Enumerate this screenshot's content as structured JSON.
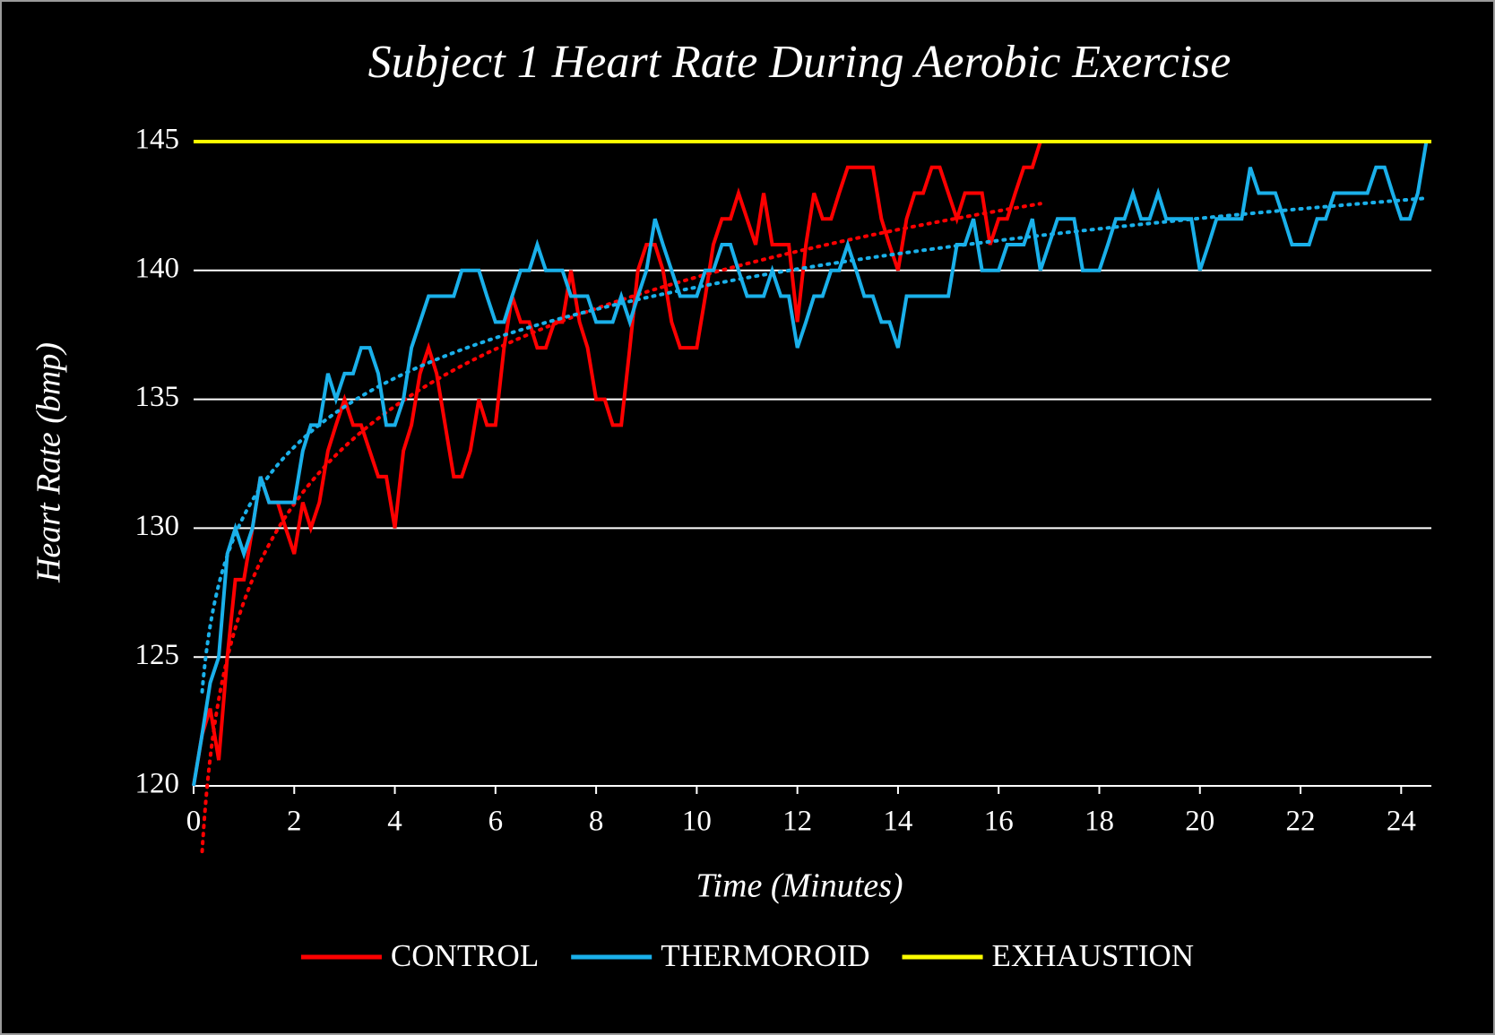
{
  "chart_data": {
    "type": "line",
    "title": "Subject 1 Heart Rate During Aerobic Exercise",
    "xlabel": "Time (Minutes)",
    "ylabel": "Heart Rate (bmp)",
    "xlim": [
      0,
      24.6
    ],
    "ylim": [
      120,
      145
    ],
    "xticks": [
      0,
      2,
      4,
      6,
      8,
      10,
      12,
      14,
      16,
      18,
      20,
      22,
      24
    ],
    "yticks": [
      120,
      125,
      130,
      135,
      140,
      145
    ],
    "grid": true,
    "legend": "bottom",
    "series": [
      {
        "name": "CONTROL",
        "color": "#ff0000",
        "trendline": "logarithmic",
        "x": [
          0,
          0.17,
          0.33,
          0.5,
          0.67,
          0.83,
          1,
          1.17,
          1.33,
          1.5,
          1.67,
          1.83,
          2,
          2.17,
          2.33,
          2.5,
          2.67,
          2.83,
          3,
          3.17,
          3.33,
          3.5,
          3.67,
          3.83,
          4,
          4.17,
          4.33,
          4.5,
          4.67,
          4.83,
          5,
          5.17,
          5.33,
          5.5,
          5.67,
          5.83,
          6,
          6.17,
          6.33,
          6.5,
          6.67,
          6.83,
          7,
          7.17,
          7.33,
          7.5,
          7.67,
          7.83,
          8,
          8.17,
          8.33,
          8.5,
          8.67,
          8.83,
          9,
          9.17,
          9.33,
          9.5,
          9.67,
          9.83,
          10,
          10.17,
          10.33,
          10.5,
          10.67,
          10.83,
          11,
          11.17,
          11.33,
          11.5,
          11.67,
          11.83,
          12,
          12.17,
          12.33,
          12.5,
          12.67,
          12.83,
          13,
          13.17,
          13.33,
          13.5,
          13.67,
          13.83,
          14,
          14.17,
          14.33,
          14.5,
          14.67,
          14.83,
          15,
          15.17,
          15.33,
          15.5,
          15.67,
          15.83,
          16,
          16.17,
          16.33,
          16.5,
          16.67,
          16.83
        ],
        "values": [
          120,
          122,
          123,
          121,
          125,
          128,
          128,
          130,
          132,
          131,
          131,
          130,
          129,
          131,
          130,
          131,
          133,
          134,
          135,
          134,
          134,
          133,
          132,
          132,
          130,
          133,
          134,
          136,
          137,
          136,
          134,
          132,
          132,
          133,
          135,
          134,
          134,
          137,
          139,
          138,
          138,
          137,
          137,
          138,
          138,
          140,
          138,
          137,
          135,
          135,
          134,
          134,
          137,
          140,
          141,
          141,
          140,
          138,
          137,
          137,
          137,
          139,
          141,
          142,
          142,
          143,
          142,
          141,
          143,
          141,
          141,
          141,
          138,
          141,
          143,
          142,
          142,
          143,
          144,
          144,
          144,
          144,
          142,
          141,
          140,
          142,
          143,
          143,
          144,
          144,
          143,
          142,
          143,
          143,
          143,
          141,
          142,
          142,
          143,
          144,
          144,
          145
        ]
      },
      {
        "name": "THERMOROID",
        "color": "#1ab0ea",
        "trendline": "logarithmic",
        "x": [
          0,
          0.17,
          0.33,
          0.5,
          0.67,
          0.83,
          1,
          1.17,
          1.33,
          1.5,
          1.67,
          1.83,
          2,
          2.17,
          2.33,
          2.5,
          2.67,
          2.83,
          3,
          3.17,
          3.33,
          3.5,
          3.67,
          3.83,
          4,
          4.17,
          4.33,
          4.5,
          4.67,
          4.83,
          5,
          5.17,
          5.33,
          5.5,
          5.67,
          5.83,
          6,
          6.17,
          6.33,
          6.5,
          6.67,
          6.83,
          7,
          7.17,
          7.33,
          7.5,
          7.67,
          7.83,
          8,
          8.17,
          8.33,
          8.5,
          8.67,
          8.83,
          9,
          9.17,
          9.33,
          9.5,
          9.67,
          9.83,
          10,
          10.17,
          10.33,
          10.5,
          10.67,
          10.83,
          11,
          11.17,
          11.33,
          11.5,
          11.67,
          11.83,
          12,
          12.17,
          12.33,
          12.5,
          12.67,
          12.83,
          13,
          13.17,
          13.33,
          13.5,
          13.67,
          13.83,
          14,
          14.17,
          14.33,
          14.5,
          14.67,
          14.83,
          15,
          15.17,
          15.33,
          15.5,
          15.67,
          15.83,
          16,
          16.17,
          16.33,
          16.5,
          16.67,
          16.83,
          17,
          17.17,
          17.33,
          17.5,
          17.67,
          17.83,
          18,
          18.17,
          18.33,
          18.5,
          18.67,
          18.83,
          19,
          19.17,
          19.33,
          19.5,
          19.67,
          19.83,
          20,
          20.17,
          20.33,
          20.5,
          20.67,
          20.83,
          21,
          21.17,
          21.33,
          21.5,
          21.67,
          21.83,
          22,
          22.17,
          22.33,
          22.5,
          22.67,
          22.83,
          23,
          23.17,
          23.33,
          23.5,
          23.67,
          23.83,
          24,
          24.17,
          24.33,
          24.5
        ],
        "values": [
          120,
          122,
          124,
          125,
          129,
          130,
          129,
          130,
          132,
          131,
          131,
          131,
          131,
          133,
          134,
          134,
          136,
          135,
          136,
          136,
          137,
          137,
          136,
          134,
          134,
          135,
          137,
          138,
          139,
          139,
          139,
          139,
          140,
          140,
          140,
          139,
          138,
          138,
          139,
          140,
          140,
          141,
          140,
          140,
          140,
          139,
          139,
          139,
          138,
          138,
          138,
          139,
          138,
          139,
          140,
          142,
          141,
          140,
          139,
          139,
          139,
          140,
          140,
          141,
          141,
          140,
          139,
          139,
          139,
          140,
          139,
          139,
          137,
          138,
          139,
          139,
          140,
          140,
          141,
          140,
          139,
          139,
          138,
          138,
          137,
          139,
          139,
          139,
          139,
          139,
          139,
          141,
          141,
          142,
          140,
          140,
          140,
          141,
          141,
          141,
          142,
          140,
          141,
          142,
          142,
          142,
          140,
          140,
          140,
          141,
          142,
          142,
          143,
          142,
          142,
          143,
          142,
          142,
          142,
          142,
          140,
          141,
          142,
          142,
          142,
          142,
          144,
          143,
          143,
          143,
          142,
          141,
          141,
          141,
          142,
          142,
          143,
          143,
          143,
          143,
          143,
          144,
          144,
          143,
          142,
          142,
          143,
          145
        ]
      },
      {
        "name": "EXHAUSTION",
        "color": "#ffff00",
        "x": [
          0,
          24.6
        ],
        "values": [
          145,
          145
        ]
      }
    ]
  }
}
